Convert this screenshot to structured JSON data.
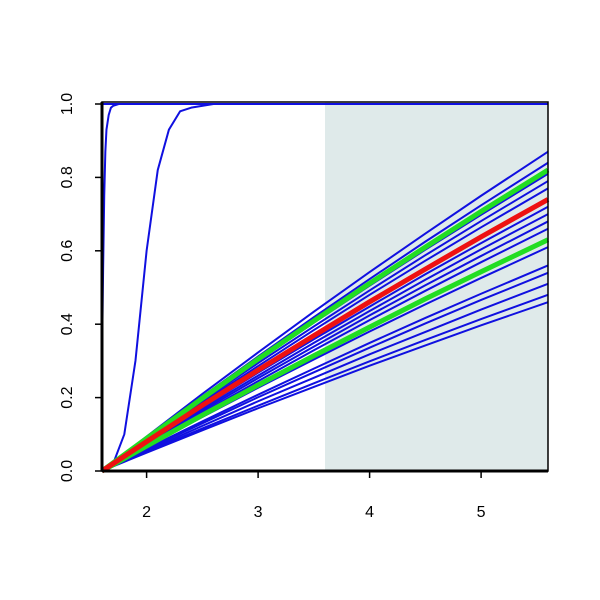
{
  "chart_data": {
    "type": "line",
    "xlim": [
      1.6,
      5.6
    ],
    "xticks": [
      2,
      3,
      4,
      5
    ],
    "ylim": [
      0,
      1
    ],
    "yticks": [
      {
        "value": 0,
        "label": "0.0"
      },
      0.2,
      0.4,
      0.6,
      0.8,
      {
        "value": 1,
        "label": "1.0"
      }
    ],
    "grid": false,
    "highlight_xlim": [
      3.6,
      5.6
    ],
    "highlight_color": "#dfeaea",
    "series": [
      {
        "color": "#1010e0",
        "line_width": 2,
        "x": [
          1.6,
          5.6
        ],
        "values": [
          1,
          1
        ]
      },
      {
        "color": "#1010e0",
        "line_width": 2,
        "x": [
          1.6,
          1.61,
          1.62,
          1.63,
          1.64,
          1.66,
          1.68,
          1.7,
          1.75,
          5.6
        ],
        "values": [
          0.3,
          0.55,
          0.75,
          0.87,
          0.93,
          0.97,
          0.99,
          0.995,
          1,
          1
        ]
      },
      {
        "color": "#1010e0",
        "line_width": 2,
        "x": [
          1.6,
          1.7,
          1.8,
          1.9,
          2,
          2.1,
          2.2,
          2.3,
          2.4,
          2.6,
          5.6
        ],
        "values": [
          0,
          0.02,
          0.1,
          0.3,
          0.6,
          0.82,
          0.93,
          0.98,
          0.99,
          1,
          1
        ]
      },
      {
        "color": "#1010e0",
        "line_width": 2,
        "x": [
          1.6,
          2,
          2.5,
          3,
          3.5,
          4,
          4.5,
          5,
          5.6
        ],
        "values": [
          0,
          0.094,
          0.21,
          0.323,
          0.434,
          0.542,
          0.647,
          0.75,
          0.87
        ]
      },
      {
        "color": "#1010e0",
        "line_width": 2,
        "x": [
          1.6,
          2,
          2.5,
          3,
          3.5,
          4,
          4.5,
          5,
          5.6
        ],
        "values": [
          0,
          0.091,
          0.203,
          0.312,
          0.419,
          0.523,
          0.625,
          0.724,
          0.84
        ]
      },
      {
        "color": "#1010e0",
        "line_width": 2,
        "x": [
          1.6,
          2,
          2.5,
          3,
          3.5,
          4,
          4.5,
          5,
          5.6
        ],
        "values": [
          0,
          0.088,
          0.196,
          0.301,
          0.404,
          0.505,
          0.603,
          0.698,
          0.81
        ]
      },
      {
        "color": "#1010e0",
        "line_width": 2,
        "x": [
          1.6,
          2,
          2.5,
          3,
          3.5,
          4,
          4.5,
          5,
          5.6
        ],
        "values": [
          0,
          0.086,
          0.191,
          0.294,
          0.394,
          0.492,
          0.588,
          0.681,
          0.79
        ]
      },
      {
        "color": "#1010e0",
        "line_width": 2,
        "x": [
          1.6,
          2,
          2.5,
          3,
          3.5,
          4,
          4.5,
          5,
          5.6
        ],
        "values": [
          0,
          0.084,
          0.186,
          0.286,
          0.384,
          0.48,
          0.573,
          0.664,
          0.77
        ]
      },
      {
        "color": "#1010e0",
        "line_width": 2,
        "x": [
          1.6,
          2,
          2.5,
          3,
          3.5,
          4,
          4.5,
          5,
          5.6
        ],
        "values": [
          0,
          0.078,
          0.174,
          0.268,
          0.359,
          0.448,
          0.536,
          0.621,
          0.72
        ]
      },
      {
        "color": "#1010e0",
        "line_width": 2,
        "x": [
          1.6,
          2,
          2.5,
          3,
          3.5,
          4,
          4.5,
          5,
          5.6
        ],
        "values": [
          0,
          0.076,
          0.169,
          0.26,
          0.349,
          0.436,
          0.521,
          0.604,
          0.7
        ]
      },
      {
        "color": "#1010e0",
        "line_width": 2,
        "x": [
          1.6,
          2,
          2.5,
          3,
          3.5,
          4,
          4.5,
          5,
          5.6
        ],
        "values": [
          0,
          0.074,
          0.164,
          0.253,
          0.339,
          0.424,
          0.506,
          0.586,
          0.68
        ]
      },
      {
        "color": "#1010e0",
        "line_width": 2,
        "x": [
          1.6,
          2,
          2.5,
          3,
          3.5,
          4,
          4.5,
          5,
          5.6
        ],
        "values": [
          0,
          0.072,
          0.159,
          0.245,
          0.329,
          0.411,
          0.491,
          0.569,
          0.66
        ]
      },
      {
        "color": "#1010e0",
        "line_width": 2,
        "x": [
          1.6,
          2,
          2.5,
          3,
          3.5,
          4,
          4.5,
          5,
          5.6
        ],
        "values": [
          0,
          0.066,
          0.147,
          0.227,
          0.304,
          0.38,
          0.454,
          0.526,
          0.61
        ]
      },
      {
        "color": "#1010e0",
        "line_width": 2,
        "x": [
          1.6,
          2,
          2.5,
          3,
          3.5,
          4,
          4.5,
          5,
          5.6
        ],
        "values": [
          0,
          0.061,
          0.135,
          0.208,
          0.279,
          0.349,
          0.417,
          0.483,
          0.56
        ]
      },
      {
        "color": "#1010e0",
        "line_width": 2,
        "x": [
          1.6,
          2,
          2.5,
          3,
          3.5,
          4,
          4.5,
          5,
          5.6
        ],
        "values": [
          0,
          0.059,
          0.13,
          0.201,
          0.269,
          0.336,
          0.402,
          0.466,
          0.54
        ]
      },
      {
        "color": "#1010e0",
        "line_width": 2,
        "x": [
          1.6,
          2,
          2.5,
          3,
          3.5,
          4,
          4.5,
          5,
          5.6
        ],
        "values": [
          0,
          0.055,
          0.123,
          0.19,
          0.254,
          0.318,
          0.379,
          0.44,
          0.51
        ]
      },
      {
        "color": "#1010e0",
        "line_width": 2,
        "x": [
          1.6,
          2,
          2.5,
          3,
          3.5,
          4,
          4.5,
          5,
          5.6
        ],
        "values": [
          0,
          0.052,
          0.116,
          0.178,
          0.239,
          0.299,
          0.357,
          0.414,
          0.48
        ]
      },
      {
        "color": "#1010e0",
        "line_width": 2,
        "x": [
          1.6,
          2,
          2.5,
          3,
          3.5,
          4,
          4.5,
          5,
          5.6
        ],
        "values": [
          0,
          0.05,
          0.111,
          0.171,
          0.229,
          0.287,
          0.342,
          0.397,
          0.46
        ]
      },
      {
        "color": "#22dd22",
        "line_width": 5,
        "x": [
          1.6,
          2,
          2.5,
          3,
          3.5,
          4,
          4.5,
          5,
          5.6
        ],
        "values": [
          0,
          0.089,
          0.198,
          0.305,
          0.409,
          0.511,
          0.61,
          0.707,
          0.82
        ]
      },
      {
        "color": "#22dd22",
        "line_width": 5,
        "x": [
          1.6,
          2,
          2.5,
          3,
          3.5,
          4,
          4.5,
          5,
          5.6
        ],
        "values": [
          0,
          0.068,
          0.152,
          0.234,
          0.314,
          0.392,
          0.469,
          0.543,
          0.63
        ]
      },
      {
        "color": "#ee1111",
        "line_width": 5,
        "x": [
          1.6,
          2,
          2.5,
          3,
          3.5,
          4,
          4.5,
          5,
          5.6
        ],
        "values": [
          0,
          0.08,
          0.179,
          0.275,
          0.369,
          0.461,
          0.55,
          0.638,
          0.74
        ]
      }
    ]
  }
}
